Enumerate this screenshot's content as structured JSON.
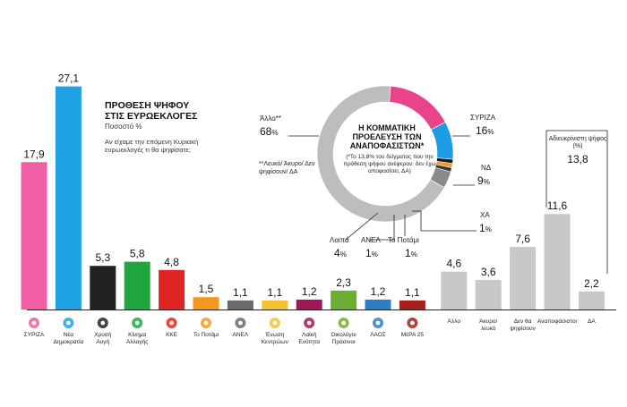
{
  "colors": {
    "bar_other": "#c8c8c8",
    "baseline": "#222222",
    "donut_gray": "#bdbdbd",
    "donut_pink": "#e9448a",
    "donut_blue": "#1e9be5"
  },
  "header": {
    "title_line1": "ΠΡΟΘΕΣΗ ΨΗΦΟΥ",
    "title_line2": "ΣΤΙΣ ΕΥΡΩΕΚΛΟΓΕΣ",
    "subtitle": "Ποσοστό %",
    "question_line1": "Αν είχαμε την επόμενη Κυριακή",
    "question_line2": "ευρωεκλογές τι θα ψηφίσατε;"
  },
  "chart_data": [
    {
      "type": "bar",
      "title": "ΠΡΟΘΕΣΗ ΨΗΦΟΥ ΣΤΙΣ ΕΥΡΩΕΚΛΟΓΕΣ",
      "ylabel": "Ποσοστό %",
      "ylim": [
        0,
        28
      ],
      "grid": false,
      "bars": [
        {
          "label": [
            "ΣΥΡΙΖΑ"
          ],
          "value": 17.9,
          "display": "17,9",
          "color": "#f05fa3",
          "icon": "syriza-logo-icon"
        },
        {
          "label": [
            "Νέα",
            "Δημοκρατία"
          ],
          "value": 27.1,
          "display": "27,1",
          "color": "#1fa2e6",
          "icon": "nd-logo-icon"
        },
        {
          "label": [
            "Χρυσή",
            "Αυγή"
          ],
          "value": 5.3,
          "display": "5,3",
          "color": "#222222",
          "icon": "golden-dawn-logo-icon"
        },
        {
          "label": [
            "Κίνημα",
            "Αλλαγής"
          ],
          "value": 5.8,
          "display": "5,8",
          "color": "#1fa63e",
          "icon": "kinal-logo-icon"
        },
        {
          "label": [
            "ΚΚΕ"
          ],
          "value": 4.8,
          "display": "4,8",
          "color": "#e02424",
          "icon": "kke-logo-icon"
        },
        {
          "label": [
            "Το Ποτάμι"
          ],
          "value": 1.5,
          "display": "1,5",
          "color": "#f39a1e",
          "icon": "potami-logo-icon"
        },
        {
          "label": [
            "ΑΝΕΛ"
          ],
          "value": 1.1,
          "display": "1,1",
          "color": "#6a6a6a",
          "icon": "anel-logo-icon"
        },
        {
          "label": [
            "Ένωση",
            "Κεντρώων"
          ],
          "value": 1.1,
          "display": "1,1",
          "color": "#f2c230",
          "icon": "enosi-kentroon-logo-icon"
        },
        {
          "label": [
            "Λαϊκή",
            "Ενότητα"
          ],
          "value": 1.2,
          "display": "1,2",
          "color": "#a1185a",
          "icon": "laiki-enotita-logo-icon"
        },
        {
          "label": [
            "Οικολόγοι",
            "Πράσινοι"
          ],
          "value": 2.3,
          "display": "2,3",
          "color": "#6cad34",
          "icon": "ecologists-greens-logo-icon"
        },
        {
          "label": [
            "ΛΑΟΣ"
          ],
          "value": 1.2,
          "display": "1,2",
          "color": "#2a7fc8",
          "icon": "laos-logo-icon"
        },
        {
          "label": [
            "ΜέΡΑ 25"
          ],
          "value": 1.1,
          "display": "1,1",
          "color": "#a5211c",
          "icon": "mera25-logo-icon"
        },
        {
          "label": [
            "Άλλο"
          ],
          "value": 4.6,
          "display": "4,6",
          "color": "#c8c8c8"
        },
        {
          "label": [
            "Άκυρο/",
            "λευκό"
          ],
          "value": 3.6,
          "display": "3,6",
          "color": "#c8c8c8"
        },
        {
          "label": [
            "Δεν θα",
            "ψηφίσουν"
          ],
          "value": 7.6,
          "display": "7,6",
          "color": "#c8c8c8"
        },
        {
          "label": [
            "Αναποφάσιστοι"
          ],
          "value": 11.6,
          "display": "11,6",
          "color": "#c8c8c8"
        },
        {
          "label": [
            "ΔΑ"
          ],
          "value": 2.2,
          "display": "2,2",
          "color": "#c8c8c8"
        }
      ]
    },
    {
      "type": "pie",
      "title": "Η ΚΟΜΜΑΤΙΚΗ ΠΡΟΕΛΕΥΣΗ ΤΩΝ ΑΝΑΠΟΦΑΣΙΣΤΩΝ*",
      "note": "(*Το 13,8% του δείγματος που την πρόθεση ψήφου ανέφεραν: δεν έχω αποφασίσει, ΔΑ)",
      "slices": [
        {
          "label": "ΣΥΡΙΖΑ",
          "value": 16,
          "color": "#e9448a"
        },
        {
          "label": "ΝΔ",
          "value": 9,
          "color": "#1e9be5"
        },
        {
          "label": "ΧΑ",
          "value": 1,
          "color": "#1a1a1a"
        },
        {
          "label": "Το Ποτάμι",
          "value": 1,
          "color": "#f39a1e"
        },
        {
          "label": "ΑΝΕΛ",
          "value": 1,
          "color": "#3a3a3a"
        },
        {
          "label": "Λοιπά",
          "value": 4,
          "color": "#8a8a8a"
        },
        {
          "label": "Άλλο",
          "value": 68,
          "color": "#bdbdbd"
        }
      ]
    }
  ],
  "pie_labels": {
    "syriza": {
      "name": "ΣΥΡΙΖΑ",
      "value": "16",
      "unit": "%"
    },
    "nd": {
      "name": "ΝΔ",
      "value": "9",
      "unit": "%"
    },
    "xa": {
      "name": "ΧΑ",
      "value": "1",
      "unit": "%"
    },
    "potami": {
      "name": "Το Ποτάμι",
      "value": "1",
      "unit": "%"
    },
    "anel": {
      "name": "ΑΝΕΛ",
      "value": "1",
      "unit": "%"
    },
    "loipa": {
      "name": "Λοιπά",
      "value": "4",
      "unit": "%"
    },
    "allo": {
      "name": "Άλλο**",
      "value": "68",
      "unit": "%"
    },
    "footnote": "**Λευκό/ Άκυρο/ Δεν ψηφίσουν/ ΔΑ"
  },
  "undecided_bracket": {
    "label": "Αδιευκρίνιστη ψήφος (%)",
    "value": "13,8"
  }
}
